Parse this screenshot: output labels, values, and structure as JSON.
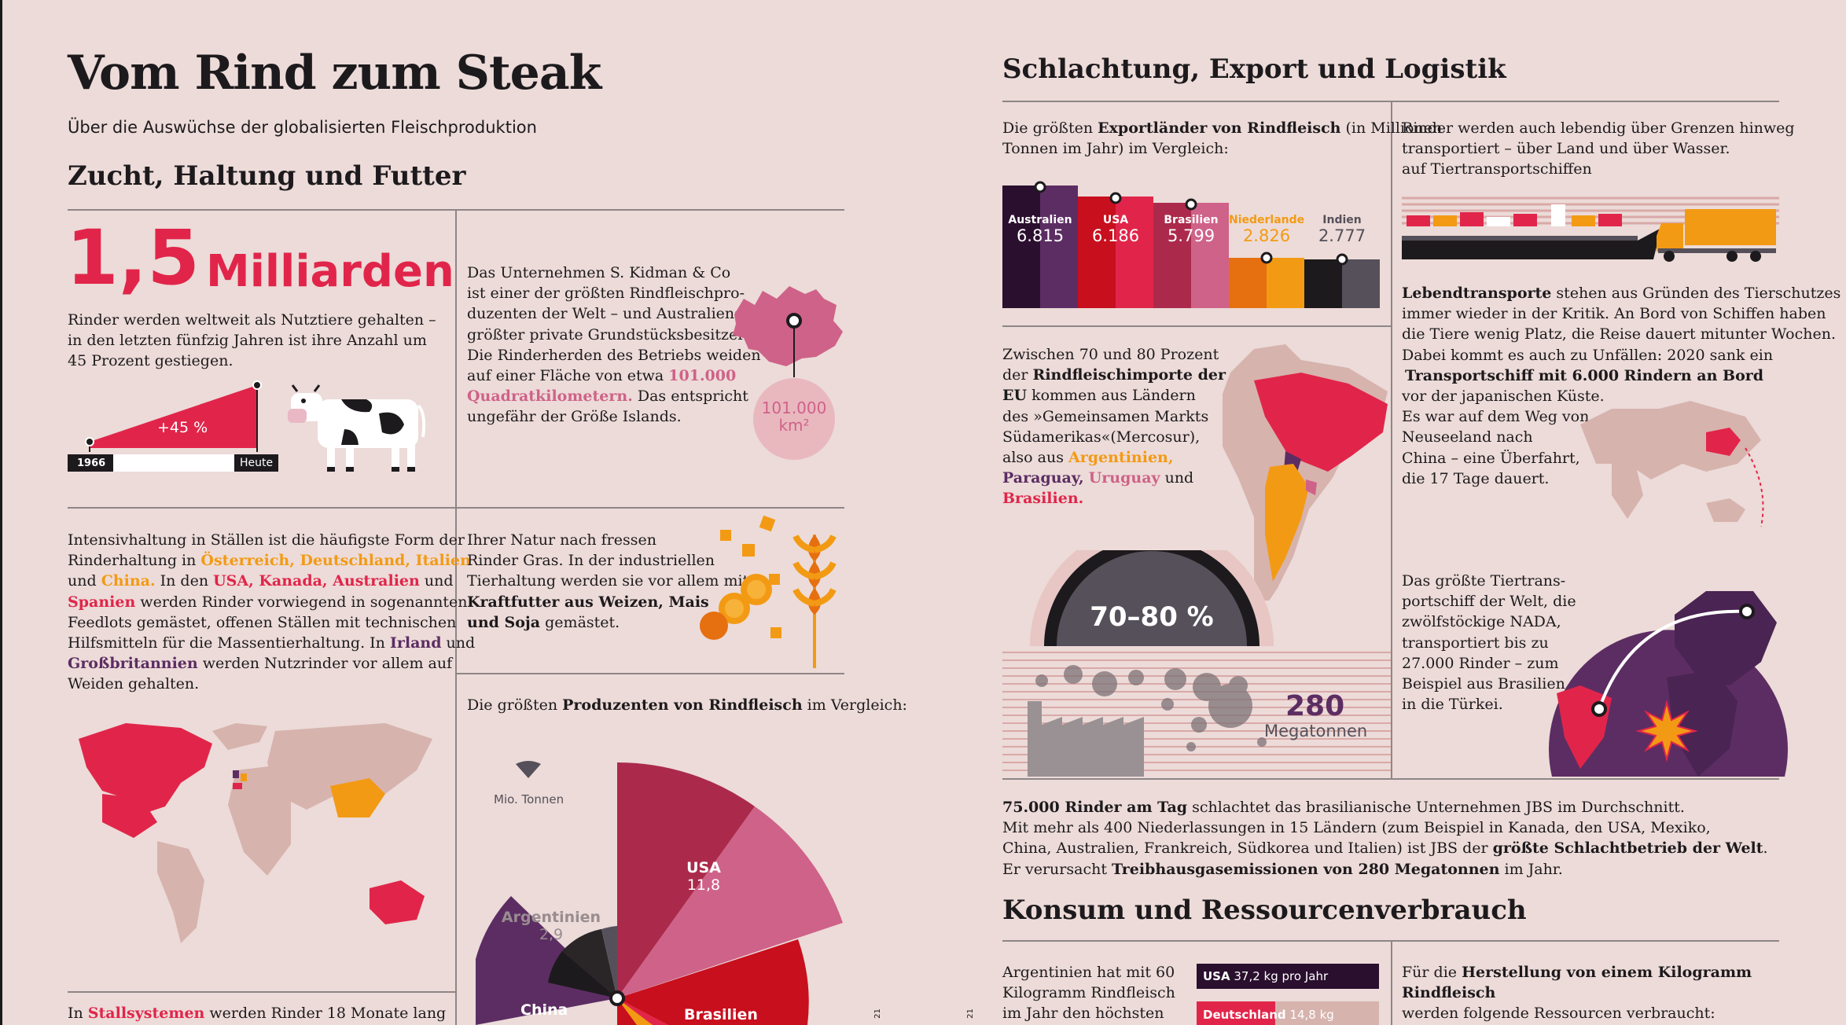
{
  "colors": {
    "background": "#ecdbd8",
    "accent_red": "#e1254a",
    "orange": "#f39a14",
    "purple": "#5c2d63",
    "pink": "#cf6289",
    "dark": "#1d1a1d"
  },
  "left": {
    "title": "Vom Rind zum Steak",
    "subtitle": "Über die Auswüchse der globalisierten Fleischproduktion",
    "section1": "Zucht, Haltung und Futter",
    "stat": {
      "big": "1,5",
      "unit": "Milliarden",
      "text1": "Rinder werden weltweit als Nutztiere gehalten –",
      "text2": "in den letzten fünfzig Jahren ist ihre Anzahl um",
      "text3": "45 Prozent gestiegen.",
      "growth": "+45 %",
      "year_start": "1966",
      "year_end": "Heute",
      "growth_fraction": 0.45
    },
    "kidman": {
      "l1": "Das Unternehmen S. Kidman & Co",
      "l2": "ist einer der größten Rindfleischpro-",
      "l3": "duzenten der Welt – und Australiens",
      "l4": "größter private Grundstücksbesitzer:",
      "l5": "Die Rinderherden des Betriebs weiden",
      "l6a": "auf einer Fläche von etwa ",
      "l6b": "101.000",
      "l7a": "Quadratkilometern.",
      "l7b": " Das entspricht",
      "l8": "ungefähr der Größe Islands.",
      "area_value": "101.000",
      "area_unit": "km²"
    },
    "intensive": {
      "l1": "Intensivhaltung in Ställen ist die häufigste Form der",
      "l2a": "Rinderhaltung in ",
      "l2b": "Österreich, Deutschland, Italien",
      "l3a": "und ",
      "l3b": "China.",
      "l3c": " In den ",
      "l3d": "USA, Kanada, Australien",
      "l3e": " und",
      "l4a": "Spanien",
      "l4b": " werden Rinder vorwiegend in sogenannten",
      "l5": "Feedlots gemästet, offenen Ställen mit technischen",
      "l6a": "Hilfsmitteln für die Massentierhaltung. In ",
      "l6b": "Irland",
      "l6c": " und",
      "l7a": "Großbritannien",
      "l7b": " werden Nutzrinder vor allem auf",
      "l8": "Weiden gehalten."
    },
    "feed": {
      "l1": "Ihrer Natur nach fressen",
      "l2": "Rinder Gras. In der industriellen",
      "l3": "Tierhaltung werden sie vor allem mit",
      "l4": "Kraftfutter aus Weizen, Mais",
      "l5a": "und Soja",
      "l5b": " gemästet."
    },
    "producers": {
      "intro_a": "Die größten ",
      "intro_b": "Produzenten von Rindfleisch",
      "intro_c": " im Vergleich:",
      "unit": "Mio. Tonnen",
      "usa": "USA",
      "usa_val": "11,8",
      "arg": "Argentinien",
      "arg_val": "2,9",
      "china": "China",
      "brasilien": "Brasilien"
    },
    "stall": {
      "a": "In ",
      "b": "Stallsystemen",
      "c": " werden Rinder 18 Monate lang"
    },
    "page_num": "21"
  },
  "right": {
    "title": "Schlachtung, Export und Logistik",
    "export": {
      "l1a": "Die größten ",
      "l1b": "Exportländer von Rindfleisch",
      "l1c": " (in Millionen",
      "l2": "Tonnen im Jahr) im Vergleich:",
      "bars": [
        {
          "name": "Australien",
          "value": "6.815"
        },
        {
          "name": "USA",
          "value": "6.186"
        },
        {
          "name": "Brasilien",
          "value": "5.799"
        },
        {
          "name": "Niederlande",
          "value": "2.826"
        },
        {
          "name": "Indien",
          "value": "2.777"
        }
      ]
    },
    "livetransport": {
      "l1": "Rinder werden auch lebendig über Grenzen hinweg",
      "l2": "transportiert – über Land und über Wasser.",
      "l3": "auf Tiertransportschiffen"
    },
    "imports": {
      "l1": "Zwischen 70 und 80 Prozent",
      "l2a": "der ",
      "l2b": "Rindfleischimporte der",
      "l3a": "EU",
      "l3b": " kommen aus Ländern",
      "l4": "des »Gemeinsamen Markts",
      "l5": "Südamerikas«(Mercosur),",
      "l6a": "also aus ",
      "l6b": "Argentinien,",
      "l7a": "Paraguay,",
      "l7b": "Uruguay",
      "l7c": " und",
      "l8": "Brasilien.",
      "gauge": "70–80 %"
    },
    "lebend": {
      "l1a": "Lebendtransporte",
      "l1b": " stehen aus Gründen des Tierschutzes",
      "l2": "immer wieder in der Kritik. An Bord von Schiffen haben",
      "l3": "die Tiere wenig Platz, die Reise dauert mitunter Wochen.",
      "l4": "Dabei kommt es auch zu Unfällen: 2020 sank ein",
      "l5": "Transportschiff mit 6.000 Rindern an Bord",
      "l6": "vor der japanischen Küste.",
      "l7": "Es war auf dem Weg von",
      "l8": "Neuseeland nach",
      "l9": "China – eine Überfahrt,",
      "l10": "die 17 Tage dauert."
    },
    "nada": {
      "l1": "Das größte Tiertrans-",
      "l2": "portschiff der Welt, die",
      "l3": "zwölfstöckige NADA,",
      "l4": "transportiert bis zu",
      "l5": "27.000 Rinder – zum",
      "l6": "Beispiel aus Brasilien",
      "l7": "in die Türkei."
    },
    "emissions": {
      "value": "280",
      "unit": "Megatonnen"
    },
    "jbs": {
      "l1a": "75.000 Rinder am Tag",
      "l1b": " schlachtet das brasilianische Unternehmen JBS im Durchschnitt.",
      "l2": "Mit mehr als 400 Niederlassungen in 15 Ländern (zum Beispiel in Kanada, den USA, Mexiko,",
      "l3a": "China, Australien, Frankreich, Südkorea und Italien) ist JBS der ",
      "l3b": "größte Schlachtbetrieb der Welt",
      ".": ".",
      "l3c": ".",
      "l4a": "Er verursacht ",
      "l4b": "Treibhausgasemissionen von 280 Megatonnen",
      "l4c": " im Jahr."
    },
    "section2": "Konsum und Ressourcenverbrauch",
    "konsum": {
      "l1": "Argentinien hat mit 60",
      "l2": "Kilogramm Rindfleisch",
      "l3": "im Jahr den höchsten",
      "bar1_a": "USA",
      "bar1_b": "37,2 kg pro Jahr",
      "bar2_a": "Deutschland",
      "bar2_b": "14,8 kg",
      "r1a": "Für die ",
      "r1b": "Herstellung von einem Kilogramm Rindfleisch",
      "r2": "werden folgende Ressourcen verbraucht:"
    },
    "page_num": "21"
  }
}
